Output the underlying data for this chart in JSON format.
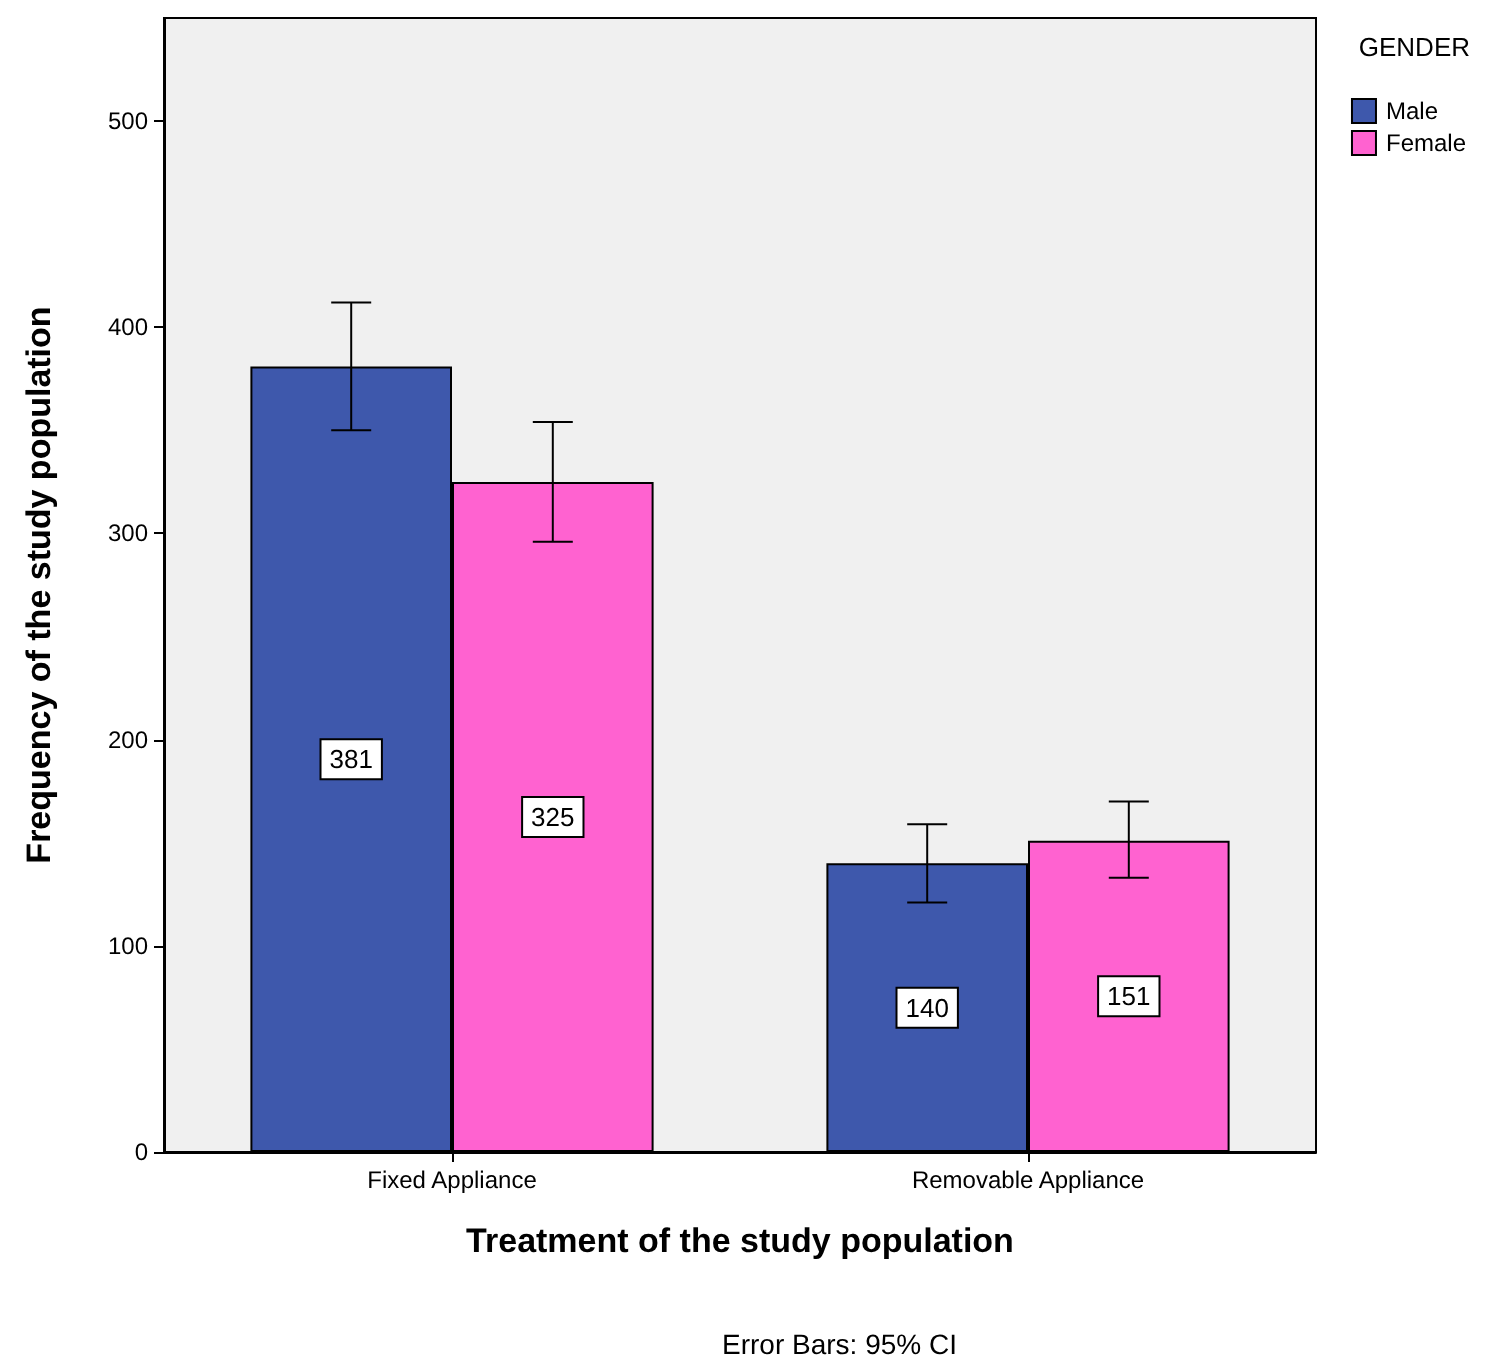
{
  "chart_data": {
    "type": "bar",
    "xlabel": "Treatment of the study population",
    "ylabel": "Frequency of the study population",
    "legend_title": "GENDER",
    "categories": [
      "Fixed Appliance",
      "Removable Appliance"
    ],
    "series": [
      {
        "name": "Male",
        "color": "#3e58ac",
        "values": [
          381,
          140
        ],
        "errors": [
          [
            350,
            412
          ],
          [
            121,
            159
          ]
        ]
      },
      {
        "name": "Female",
        "color": "#ff62d0",
        "values": [
          325,
          151
        ],
        "errors": [
          [
            296,
            354
          ],
          [
            133,
            170
          ]
        ]
      }
    ],
    "ylim": [
      0,
      550
    ],
    "yticks": [
      0,
      100,
      200,
      300,
      400,
      500
    ],
    "grid": false,
    "legend": "top right",
    "data_labels": true,
    "annotations": [
      "Error Bars: 95% CI"
    ]
  }
}
